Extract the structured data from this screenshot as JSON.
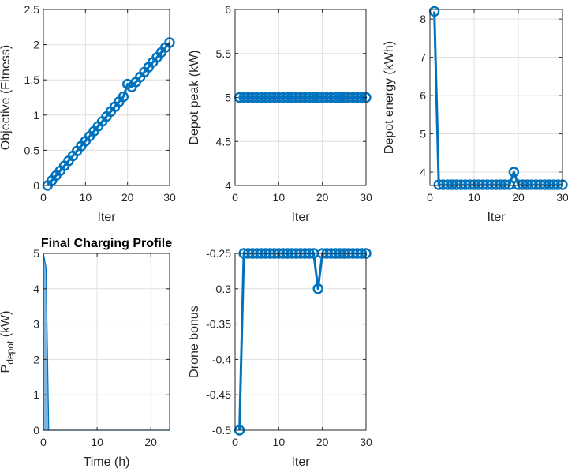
{
  "colors": {
    "series": "#0072BD",
    "fill": "#7FB4DE",
    "grid": "#dfdfdf",
    "axis": "#262626"
  },
  "chart_data": [
    {
      "type": "line",
      "title": "",
      "xlabel": "Iter",
      "ylabel": "Objective (Fitness)",
      "xlim": [
        0,
        30
      ],
      "ylim": [
        0,
        2.5
      ],
      "xticks": [
        0,
        10,
        20,
        30
      ],
      "yticks": [
        0,
        0.5,
        1,
        1.5,
        2,
        2.5
      ],
      "xtick_labels": [
        "0",
        "10",
        "20",
        "30"
      ],
      "ytick_labels": [
        "0",
        "0.5",
        "1",
        "1.5",
        "2",
        "2.5"
      ],
      "grid": true,
      "markers": true,
      "x": [
        1,
        2,
        3,
        4,
        5,
        6,
        7,
        8,
        9,
        10,
        11,
        12,
        13,
        14,
        15,
        16,
        17,
        18,
        19,
        20,
        21,
        22,
        23,
        24,
        25,
        26,
        27,
        28,
        29,
        30
      ],
      "y": [
        0.0,
        0.07,
        0.14,
        0.21,
        0.28,
        0.35,
        0.42,
        0.49,
        0.56,
        0.63,
        0.7,
        0.77,
        0.84,
        0.91,
        0.98,
        1.05,
        1.12,
        1.19,
        1.26,
        1.44,
        1.4,
        1.47,
        1.54,
        1.61,
        1.68,
        1.75,
        1.82,
        1.89,
        1.96,
        2.03
      ]
    },
    {
      "type": "line",
      "title": "",
      "xlabel": "Iter",
      "ylabel": "Depot peak (kW)",
      "xlim": [
        0,
        30
      ],
      "ylim": [
        4,
        6
      ],
      "xticks": [
        0,
        10,
        20,
        30
      ],
      "yticks": [
        4,
        4.5,
        5,
        5.5,
        6
      ],
      "xtick_labels": [
        "0",
        "10",
        "20",
        "30"
      ],
      "ytick_labels": [
        "4",
        "4.5",
        "5",
        "5.5",
        "6"
      ],
      "grid": true,
      "markers": true,
      "x": [
        1,
        2,
        3,
        4,
        5,
        6,
        7,
        8,
        9,
        10,
        11,
        12,
        13,
        14,
        15,
        16,
        17,
        18,
        19,
        20,
        21,
        22,
        23,
        24,
        25,
        26,
        27,
        28,
        29,
        30
      ],
      "y": [
        5,
        5,
        5,
        5,
        5,
        5,
        5,
        5,
        5,
        5,
        5,
        5,
        5,
        5,
        5,
        5,
        5,
        5,
        5,
        5,
        5,
        5,
        5,
        5,
        5,
        5,
        5,
        5,
        5,
        5
      ]
    },
    {
      "type": "line",
      "title": "",
      "xlabel": "Iter",
      "ylabel": "Depot energy (kWh)",
      "xlim": [
        0,
        30
      ],
      "ylim": [
        3.65,
        8.25
      ],
      "xticks": [
        0,
        10,
        20,
        30
      ],
      "yticks": [
        4,
        5,
        6,
        7,
        8
      ],
      "xtick_labels": [
        "0",
        "10",
        "20",
        "30"
      ],
      "ytick_labels": [
        "4",
        "5",
        "6",
        "7",
        "8"
      ],
      "grid": true,
      "markers": true,
      "x": [
        1,
        2,
        3,
        4,
        5,
        6,
        7,
        8,
        9,
        10,
        11,
        12,
        13,
        14,
        15,
        16,
        17,
        18,
        19,
        20,
        21,
        22,
        23,
        24,
        25,
        26,
        27,
        28,
        29,
        30
      ],
      "y": [
        8.2,
        3.67,
        3.67,
        3.67,
        3.67,
        3.67,
        3.67,
        3.67,
        3.67,
        3.67,
        3.67,
        3.67,
        3.67,
        3.67,
        3.67,
        3.67,
        3.67,
        3.67,
        4.0,
        3.67,
        3.67,
        3.67,
        3.67,
        3.67,
        3.67,
        3.67,
        3.67,
        3.67,
        3.67,
        3.67
      ]
    },
    {
      "type": "area",
      "title": "Final Charging Profile",
      "xlabel": "Time (h)",
      "ylabel": "P",
      "ylabel_subscript": "depot",
      "ylabel_unit": " (kW)",
      "xlim": [
        0,
        23.5
      ],
      "ylim": [
        0,
        5
      ],
      "xticks": [
        0,
        10,
        20
      ],
      "yticks": [
        0,
        1,
        2,
        3,
        4,
        5
      ],
      "xtick_labels": [
        "0",
        "10",
        "20"
      ],
      "ytick_labels": [
        "0",
        "1",
        "2",
        "3",
        "4",
        "5"
      ],
      "grid": true,
      "markers": false,
      "x": [
        0,
        0.5,
        1,
        23.5
      ],
      "y": [
        5,
        4.6,
        0,
        0
      ]
    },
    {
      "type": "line",
      "title": "",
      "xlabel": "Iter",
      "ylabel": "Drone bonus",
      "xlim": [
        0,
        30
      ],
      "ylim": [
        -0.5,
        -0.25
      ],
      "xticks": [
        0,
        10,
        20,
        30
      ],
      "yticks": [
        -0.5,
        -0.45,
        -0.4,
        -0.35,
        -0.3,
        -0.25
      ],
      "xtick_labels": [
        "0",
        "10",
        "20",
        "30"
      ],
      "ytick_labels": [
        "-0.5",
        "-0.45",
        "-0.4",
        "-0.35",
        "-0.3",
        "-0.25"
      ],
      "grid": true,
      "markers": true,
      "x": [
        1,
        2,
        3,
        4,
        5,
        6,
        7,
        8,
        9,
        10,
        11,
        12,
        13,
        14,
        15,
        16,
        17,
        18,
        19,
        20,
        21,
        22,
        23,
        24,
        25,
        26,
        27,
        28,
        29,
        30
      ],
      "y": [
        -0.5,
        -0.25,
        -0.25,
        -0.25,
        -0.25,
        -0.25,
        -0.25,
        -0.25,
        -0.25,
        -0.25,
        -0.25,
        -0.25,
        -0.25,
        -0.25,
        -0.25,
        -0.25,
        -0.25,
        -0.25,
        -0.3,
        -0.25,
        -0.25,
        -0.25,
        -0.25,
        -0.25,
        -0.25,
        -0.25,
        -0.25,
        -0.25,
        -0.25,
        -0.25
      ]
    }
  ]
}
